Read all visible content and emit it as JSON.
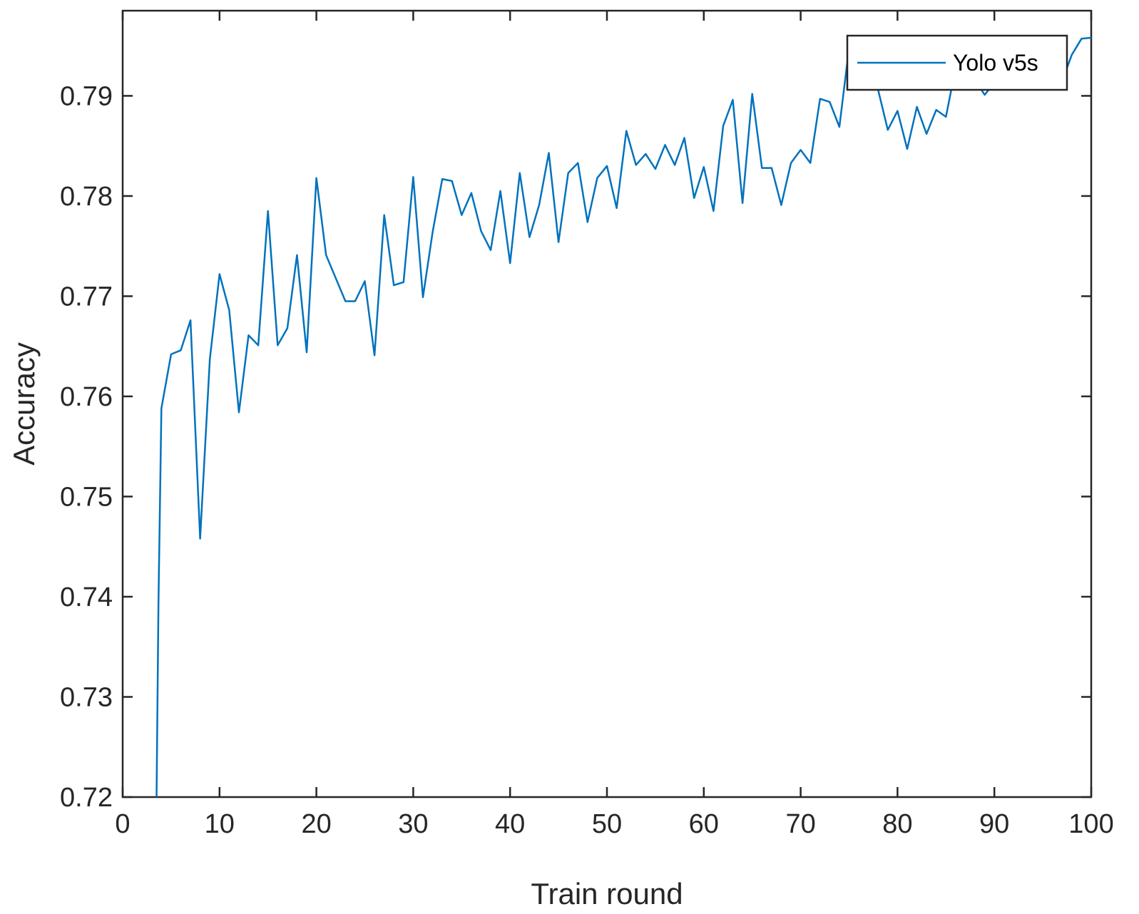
{
  "chart_data": {
    "type": "line",
    "title": "",
    "xlabel": "Train round",
    "ylabel": "Accuracy",
    "xlim": [
      0,
      100
    ],
    "ylim": [
      0.72,
      0.7985
    ],
    "xticks": [
      "0",
      "10",
      "20",
      "30",
      "40",
      "50",
      "60",
      "70",
      "80",
      "90",
      "100"
    ],
    "yticks": [
      "0.72",
      "0.73",
      "0.74",
      "0.75",
      "0.76",
      "0.77",
      "0.78",
      "0.79"
    ],
    "legend": {
      "placement": "top-right"
    },
    "grid": false,
    "series": [
      {
        "name": "Yolo v5s",
        "color": "#0072BD",
        "x": [
          3.5,
          3.7,
          4,
          5,
          6,
          7,
          8,
          9,
          10,
          11,
          12,
          13,
          14,
          15,
          16,
          17,
          18,
          19,
          20,
          21,
          22,
          23,
          24,
          25,
          26,
          27,
          28,
          29,
          30,
          31,
          32,
          33,
          34,
          35,
          36,
          37,
          38,
          39,
          40,
          41,
          42,
          43,
          44,
          45,
          46,
          47,
          48,
          49,
          50,
          51,
          52,
          53,
          54,
          55,
          56,
          57,
          58,
          59,
          60,
          61,
          62,
          63,
          64,
          65,
          66,
          67,
          68,
          69,
          70,
          71,
          72,
          73,
          74,
          75,
          76,
          77,
          78,
          79,
          80,
          81,
          82,
          83,
          84,
          85,
          86,
          87,
          88,
          89,
          90,
          91,
          92,
          93,
          94,
          95,
          96,
          97,
          98,
          99,
          100
        ],
        "y": [
          0.72,
          0.7395,
          0.7588,
          0.7642,
          0.7646,
          0.7676,
          0.7458,
          0.7637,
          0.7722,
          0.7686,
          0.7584,
          0.7661,
          0.7651,
          0.7785,
          0.7651,
          0.7668,
          0.7741,
          0.7644,
          0.7818,
          0.7741,
          0.7718,
          0.7695,
          0.7695,
          0.7715,
          0.7641,
          0.7781,
          0.7711,
          0.7714,
          0.7819,
          0.7699,
          0.7764,
          0.7817,
          0.7815,
          0.7781,
          0.7803,
          0.7765,
          0.7746,
          0.7805,
          0.7733,
          0.7823,
          0.7759,
          0.7791,
          0.7843,
          0.7754,
          0.7823,
          0.7833,
          0.7774,
          0.7818,
          0.783,
          0.7788,
          0.7865,
          0.7831,
          0.7842,
          0.7827,
          0.7851,
          0.7831,
          0.7858,
          0.7798,
          0.7829,
          0.7785,
          0.787,
          0.7896,
          0.7793,
          0.7902,
          0.7828,
          0.7828,
          0.7791,
          0.7833,
          0.7846,
          0.7833,
          0.7897,
          0.7894,
          0.7869,
          0.7948,
          0.7906,
          0.7913,
          0.7906,
          0.7866,
          0.7885,
          0.7847,
          0.7889,
          0.7862,
          0.7886,
          0.7879,
          0.7928,
          0.7913,
          0.7916,
          0.7901,
          0.7913,
          0.7932,
          0.7912,
          0.7949,
          0.7941,
          0.7948,
          0.7928,
          0.7915,
          0.7941,
          0.7957,
          0.7958
        ]
      }
    ]
  }
}
